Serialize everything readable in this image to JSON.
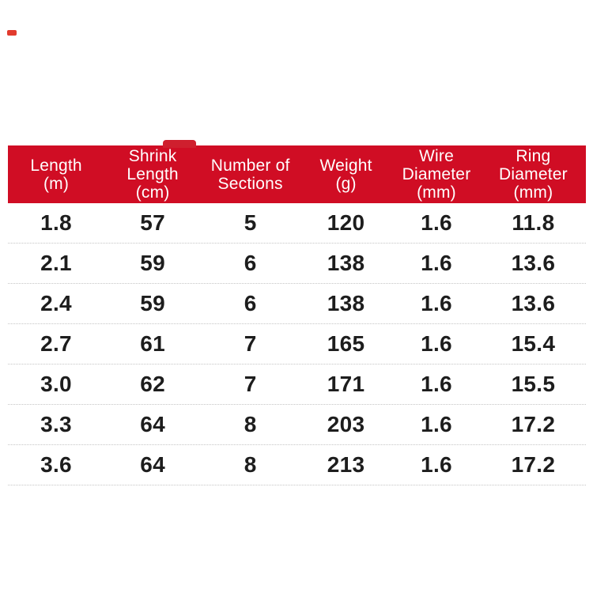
{
  "page": {
    "background": "#ffffff",
    "corner_dash_color": "#e23b2e"
  },
  "header": {
    "background": "#d00d24",
    "bump_color": "#cf1f2e",
    "text_color": "#ffffff"
  },
  "table": {
    "columns": [
      {
        "id": "length",
        "label": "Length\n(m)"
      },
      {
        "id": "shrink-length",
        "label": "Shrink\nLength\n(cm)"
      },
      {
        "id": "sections",
        "label": "Number of\nSections"
      },
      {
        "id": "weight",
        "label": "Weight\n(g)"
      },
      {
        "id": "wire-diameter",
        "label": "Wire\nDiameter\n(mm)"
      },
      {
        "id": "ring-diameter",
        "label": "Ring\nDiameter\n(mm)"
      }
    ],
    "rows": [
      [
        "1.8",
        "57",
        "5",
        "120",
        "1.6",
        "11.8"
      ],
      [
        "2.1",
        "59",
        "6",
        "138",
        "1.6",
        "13.6"
      ],
      [
        "2.4",
        "59",
        "6",
        "138",
        "1.6",
        "13.6"
      ],
      [
        "2.7",
        "61",
        "7",
        "165",
        "1.6",
        "15.4"
      ],
      [
        "3.0",
        "62",
        "7",
        "171",
        "1.6",
        "15.5"
      ],
      [
        "3.3",
        "64",
        "8",
        "203",
        "1.6",
        "17.2"
      ],
      [
        "3.6",
        "64",
        "8",
        "213",
        "1.6",
        "17.2"
      ]
    ]
  },
  "chart_data": {
    "type": "table",
    "title": "",
    "columns": [
      "Length (m)",
      "Shrink Length (cm)",
      "Number of Sections",
      "Weight (g)",
      "Wire Diameter (mm)",
      "Ring Diameter (mm)"
    ],
    "rows": [
      [
        1.8,
        57,
        5,
        120,
        1.6,
        11.8
      ],
      [
        2.1,
        59,
        6,
        138,
        1.6,
        13.6
      ],
      [
        2.4,
        59,
        6,
        138,
        1.6,
        13.6
      ],
      [
        2.7,
        61,
        7,
        165,
        1.6,
        15.4
      ],
      [
        3.0,
        62,
        7,
        171,
        1.6,
        15.5
      ],
      [
        3.3,
        64,
        8,
        203,
        1.6,
        17.2
      ],
      [
        3.6,
        64,
        8,
        213,
        1.6,
        17.2
      ]
    ],
    "layout": {
      "header_background": "#d00d24",
      "row_separator": "dotted",
      "grid": "horizontal-only"
    }
  }
}
